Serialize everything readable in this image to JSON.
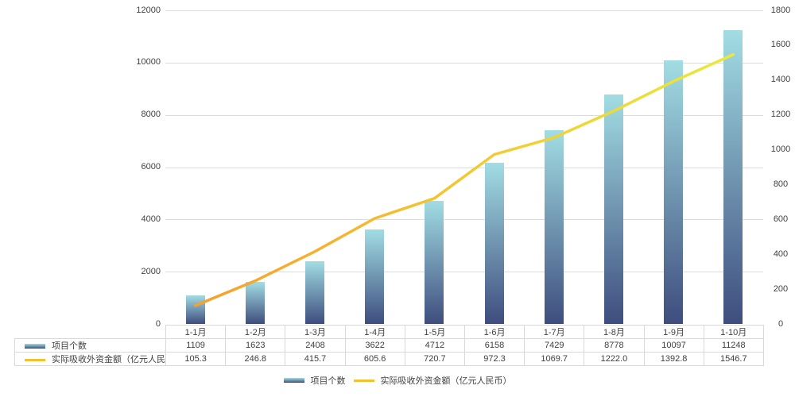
{
  "chart_data": {
    "type": "bar+line",
    "title": "",
    "categories": [
      "1-1月",
      "1-2月",
      "1-3月",
      "1-4月",
      "1-5月",
      "1-6月",
      "1-7月",
      "1-8月",
      "1-9月",
      "1-10月"
    ],
    "series": [
      {
        "name": "项目个数",
        "type": "bar",
        "axis": "left",
        "values": [
          1109,
          1623,
          2408,
          3622,
          4712,
          6158,
          7429,
          8778,
          10097,
          11248
        ],
        "labels": [
          "1109",
          "1623",
          "2408",
          "3622",
          "4712",
          "6158",
          "7429",
          "8778",
          "10097",
          "11248"
        ]
      },
      {
        "name": "实际吸收外资金额（亿元人民币）",
        "type": "line",
        "axis": "right",
        "values": [
          105.3,
          246.8,
          415.7,
          605.6,
          720.7,
          972.3,
          1069.7,
          1222.0,
          1392.8,
          1546.7
        ],
        "labels": [
          "105.3",
          "246.8",
          "415.7",
          "605.6",
          "720.7",
          "972.3",
          "1069.7",
          "1222.0",
          "1392.8",
          "1546.7"
        ]
      }
    ],
    "left_axis": {
      "min": 0,
      "max": 12000,
      "step": 2000,
      "ticks": [
        "12000",
        "10000",
        "8000",
        "6000",
        "4000",
        "2000",
        "0"
      ]
    },
    "right_axis": {
      "min": 0,
      "max": 1800,
      "step": 200,
      "ticks": [
        "1800",
        "1600",
        "1400",
        "1200",
        "1000",
        "800",
        "600",
        "400",
        "200",
        "0"
      ]
    },
    "grid": true,
    "legend_position": "bottom",
    "data_table_shown": true,
    "colors": {
      "bar_gradient_top": "#a2dde3",
      "bar_gradient_bottom": "#3e4d7e",
      "line_gradient_start": "#f6a02f",
      "line_gradient_mid": "#f2c833",
      "line_gradient_end": "#e9e93b",
      "swatch_gold": "#f2c32f",
      "grid_line": "#dcdcdc",
      "table_border": "#d9d9d9",
      "text": "#404040"
    }
  }
}
